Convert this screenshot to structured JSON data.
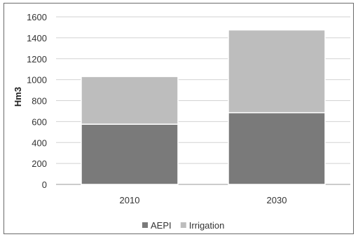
{
  "chart_data": {
    "type": "bar",
    "stacked": true,
    "categories": [
      "2010",
      "2030"
    ],
    "series": [
      {
        "name": "AEPI",
        "values": [
          575,
          685
        ],
        "color": "#7a7a7a"
      },
      {
        "name": "Irrigation",
        "values": [
          455,
          790
        ],
        "color": "#bdbdbd"
      }
    ],
    "ylabel": "Hm3",
    "ylim": [
      0,
      1600
    ],
    "yticks": [
      0,
      200,
      400,
      600,
      800,
      1000,
      1200,
      1400,
      1600
    ],
    "grid": true,
    "legend": "bottom"
  }
}
